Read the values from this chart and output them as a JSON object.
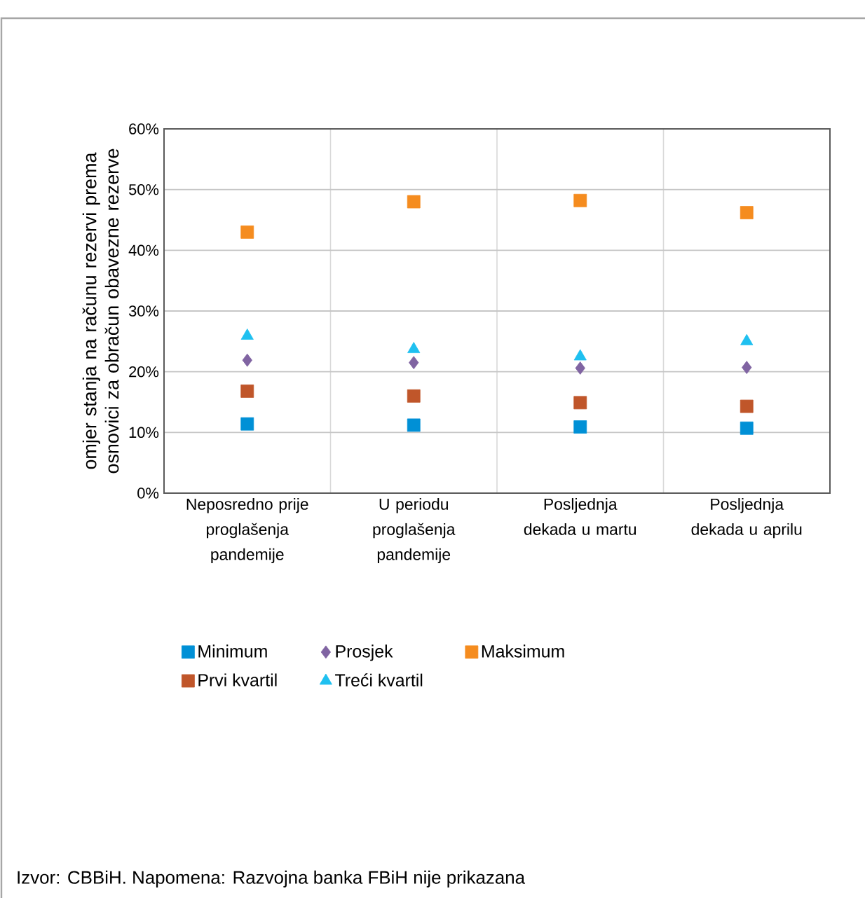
{
  "chart_data": {
    "type": "scatter",
    "ylabel": "omjer stanja na računu rezervi prema osnovici za obračun obavezne rezerve",
    "categories": [
      "Neposredno prije proglašenja pandemije",
      "U periodu proglašenja pandemije",
      "Posljednja dekada u martu",
      "Posljednja dekada u aprilu"
    ],
    "series": [
      {
        "name": "Minimum",
        "color": "#0090d6",
        "marker": "square",
        "values": [
          11.4,
          11.2,
          10.9,
          10.7
        ]
      },
      {
        "name": "Prosjek",
        "color": "#8064a2",
        "marker": "diamond",
        "values": [
          21.9,
          21.5,
          20.6,
          20.7
        ]
      },
      {
        "name": "Maksimum",
        "color": "#f58c1f",
        "marker": "square",
        "values": [
          43.0,
          48.0,
          48.2,
          46.2
        ]
      },
      {
        "name": "Prvi kvartil",
        "color": "#c0562a",
        "marker": "square",
        "values": [
          16.8,
          16.0,
          14.9,
          14.3
        ]
      },
      {
        "name": "Treći kvartil",
        "color": "#1fc0f0",
        "marker": "triangle",
        "values": [
          25.9,
          23.7,
          22.5,
          25.0
        ]
      }
    ],
    "ylim": [
      0,
      60
    ],
    "yticks": [
      {
        "value": 0,
        "label": "0%"
      },
      {
        "value": 10,
        "label": "10%"
      },
      {
        "value": 20,
        "label": "20%"
      },
      {
        "value": 30,
        "label": "30%"
      },
      {
        "value": 40,
        "label": "40%"
      },
      {
        "value": 50,
        "label": "50%"
      },
      {
        "value": 60,
        "label": "60%"
      }
    ],
    "grid": true,
    "legend": "bottom",
    "annotations": [
      "Izvor: CBBiH.  Napomena: Razvojna banka FBiH nije prikazana"
    ]
  }
}
